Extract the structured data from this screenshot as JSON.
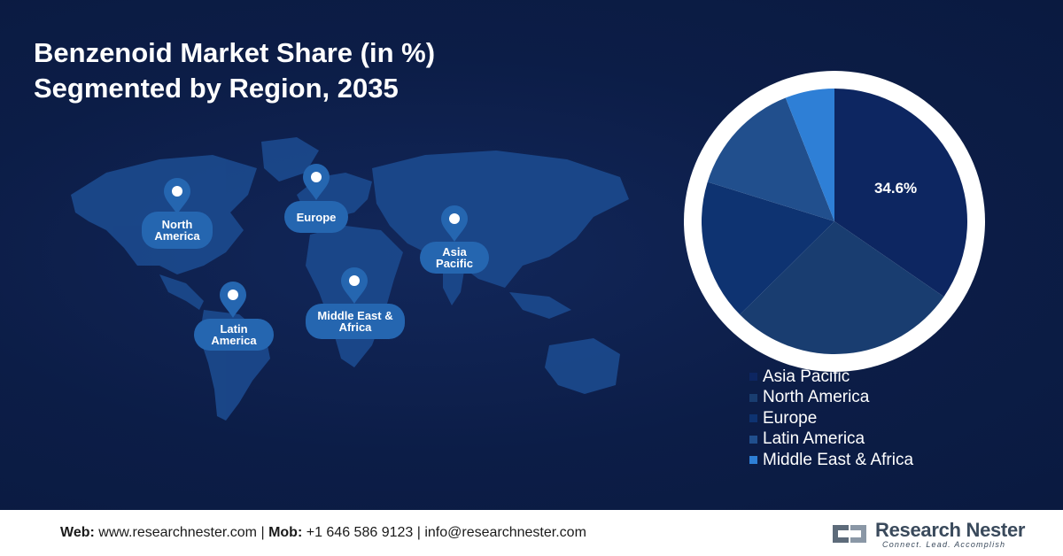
{
  "title_line1": "Benzenoid Market Share (in %)",
  "title_line2": "Segmented by Region, 2035",
  "map_labels": {
    "north_america": "North America",
    "europe": "Europe",
    "asia_pacific": "Asia Pacific",
    "latin_america": "Latin America",
    "middle_east_africa": "Middle East & Africa"
  },
  "chart_data": {
    "type": "pie",
    "title": "Benzenoid Market Share (in %) Segmented by Region, 2035",
    "categories": [
      "Asia Pacific",
      "North America",
      "Europe",
      "Latin America",
      "Middle East & Africa"
    ],
    "values": [
      34.6,
      28.0,
      17.2,
      14.2,
      6.0
    ],
    "data_labels": [
      "34.6%",
      "",
      "",
      "",
      ""
    ],
    "colors": [
      "#0d2661",
      "#193d70",
      "#0e3371",
      "#214f8d",
      "#2e7fd6"
    ],
    "legend_position": "bottom-right"
  },
  "footer": {
    "web_label": "Web:",
    "web_value": "www.researchnester.com",
    "sep1": "|",
    "mob_label": "Mob:",
    "mob_value": "+1 646 586 9123",
    "sep2": "|",
    "email": "info@researchnester.com"
  },
  "logo": {
    "name": "Research Nester",
    "tagline": "Connect. Lead. Accomplish"
  }
}
